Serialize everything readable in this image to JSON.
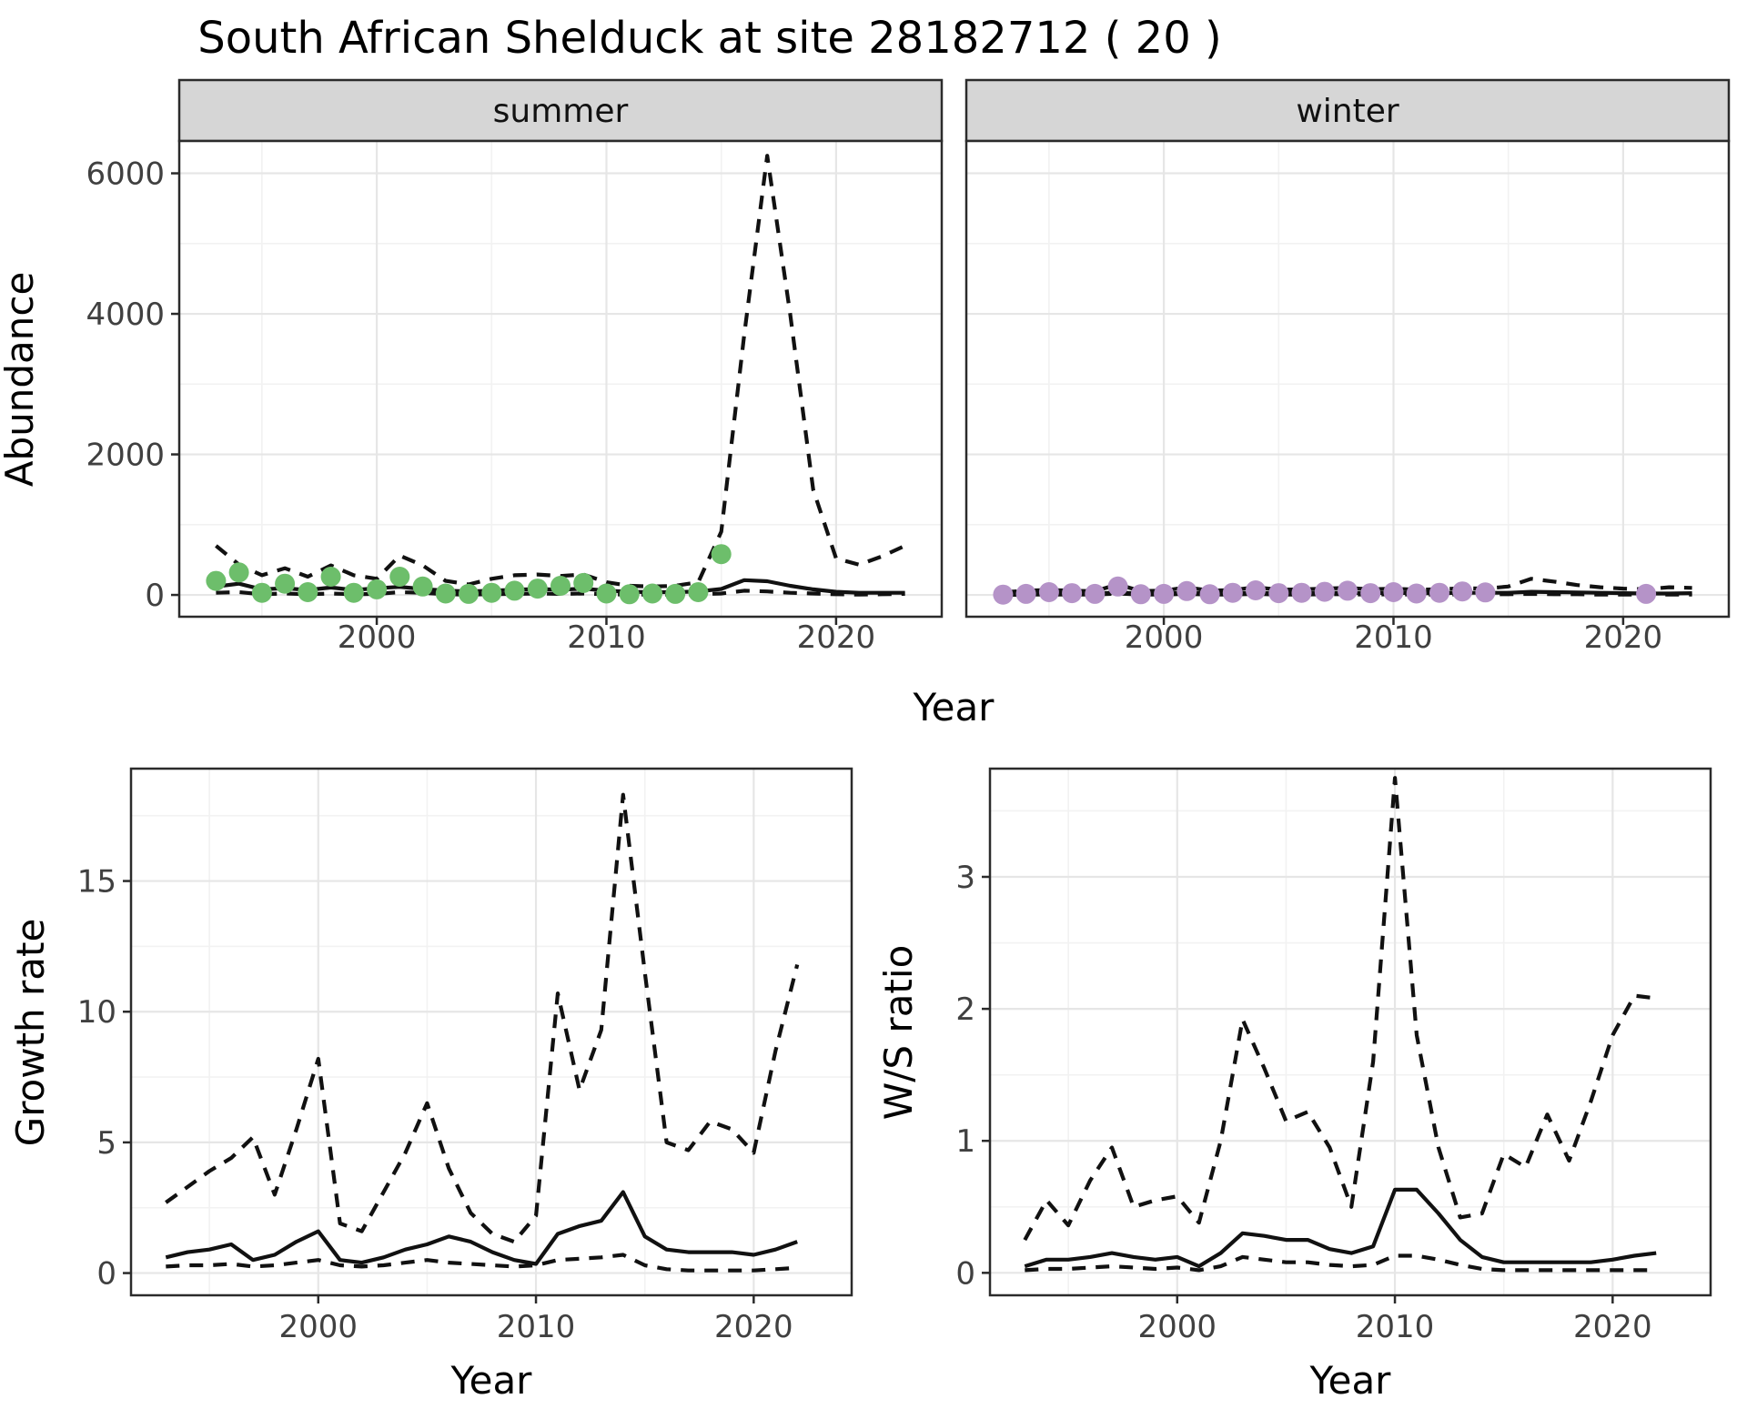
{
  "title": "South African Shelduck at site 28182712 ( 20 )",
  "axis_titles": {
    "x": "Year",
    "abundance_y": "Abundance",
    "growth_y": "Growth rate",
    "ratio_y": "W/S ratio"
  },
  "facets": {
    "summer": "summer",
    "winter": "winter"
  },
  "colors": {
    "summer_point": "#6dbe6b",
    "winter_point": "#b593c8",
    "line": "#111111",
    "strip_bg": "#d6d6d6",
    "panel_border": "#2b2b2b",
    "grid_major": "#e6e6e6",
    "grid_minor": "#f2f2f2",
    "axis_text": "#404040"
  },
  "chart_data": [
    {
      "id": "abundance-summer",
      "type": "line",
      "facet_label": "summer",
      "xlim": [
        1991.4,
        2024.6
      ],
      "ylim": [
        -310,
        6460
      ],
      "x_major": [
        2000,
        2010,
        2020
      ],
      "x_minor": [
        1995,
        2005,
        2015
      ],
      "y_major": [
        0,
        2000,
        4000,
        6000
      ],
      "y_minor": [
        1000,
        3000,
        5000
      ],
      "show_x_labels": true,
      "show_y_labels": true,
      "points": {
        "color": "#6dbe6b",
        "years": [
          1993,
          1994,
          1995,
          1996,
          1997,
          1998,
          1999,
          2000,
          2001,
          2002,
          2003,
          2004,
          2005,
          2006,
          2007,
          2008,
          2009,
          2010,
          2011,
          2012,
          2013,
          2014,
          2015
        ],
        "values": [
          200,
          320,
          30,
          160,
          40,
          260,
          30,
          80,
          260,
          120,
          20,
          15,
          30,
          60,
          90,
          130,
          170,
          20,
          10,
          20,
          15,
          40,
          580
        ]
      },
      "series": [
        {
          "name": "mean",
          "dash": false,
          "years": [
            1993,
            1994,
            1995,
            1996,
            1997,
            1998,
            1999,
            2000,
            2001,
            2002,
            2003,
            2004,
            2005,
            2006,
            2007,
            2008,
            2009,
            2010,
            2011,
            2012,
            2013,
            2014,
            2015,
            2016,
            2017,
            2018,
            2019,
            2020,
            2021,
            2022,
            2023
          ],
          "values": [
            120,
            160,
            80,
            95,
            70,
            105,
            70,
            95,
            115,
            85,
            60,
            50,
            60,
            75,
            85,
            75,
            90,
            60,
            45,
            40,
            40,
            50,
            85,
            210,
            195,
            130,
            80,
            45,
            30,
            30,
            30
          ]
        },
        {
          "name": "upper-ci",
          "dash": true,
          "years": [
            1993,
            1994,
            1995,
            1996,
            1997,
            1998,
            1999,
            2000,
            2001,
            2002,
            2003,
            2004,
            2005,
            2006,
            2007,
            2008,
            2009,
            2010,
            2011,
            2012,
            2013,
            2014,
            2015,
            2016,
            2017,
            2018,
            2019,
            2020,
            2021,
            2022,
            2023
          ],
          "values": [
            700,
            430,
            280,
            380,
            260,
            420,
            280,
            230,
            560,
            420,
            200,
            150,
            230,
            280,
            290,
            270,
            290,
            180,
            130,
            120,
            130,
            180,
            900,
            3700,
            6250,
            4000,
            1500,
            520,
            430,
            550,
            700
          ]
        },
        {
          "name": "lower-ci",
          "dash": true,
          "years": [
            1993,
            1994,
            1995,
            1996,
            1997,
            1998,
            1999,
            2000,
            2001,
            2002,
            2003,
            2004,
            2005,
            2006,
            2007,
            2008,
            2009,
            2010,
            2011,
            2012,
            2013,
            2014,
            2015,
            2016,
            2017,
            2018,
            2019,
            2020,
            2021,
            2022,
            2023
          ],
          "values": [
            30,
            40,
            10,
            20,
            10,
            20,
            10,
            15,
            40,
            30,
            10,
            5,
            10,
            15,
            20,
            15,
            20,
            10,
            5,
            5,
            5,
            10,
            20,
            60,
            50,
            30,
            20,
            10,
            5,
            10,
            15
          ]
        }
      ]
    },
    {
      "id": "abundance-winter",
      "type": "line",
      "facet_label": "winter",
      "xlim": [
        1991.4,
        2024.6
      ],
      "ylim": [
        -310,
        6460
      ],
      "x_major": [
        2000,
        2010,
        2020
      ],
      "x_minor": [
        1995,
        2005,
        2015
      ],
      "y_major": [
        0,
        2000,
        4000,
        6000
      ],
      "y_minor": [
        1000,
        3000,
        5000
      ],
      "show_x_labels": true,
      "show_y_labels": false,
      "points": {
        "color": "#b593c8",
        "years": [
          1993,
          1994,
          1995,
          1996,
          1997,
          1998,
          1999,
          2000,
          2001,
          2002,
          2003,
          2004,
          2005,
          2006,
          2007,
          2008,
          2009,
          2010,
          2011,
          2012,
          2013,
          2014,
          2021
        ],
        "values": [
          5,
          15,
          40,
          25,
          15,
          120,
          10,
          15,
          55,
          10,
          30,
          65,
          25,
          30,
          45,
          60,
          25,
          40,
          20,
          30,
          50,
          35,
          15
        ]
      },
      "series": [
        {
          "name": "mean",
          "dash": false,
          "years": [
            1993,
            1994,
            1995,
            1996,
            1997,
            1998,
            1999,
            2000,
            2001,
            2002,
            2003,
            2004,
            2005,
            2006,
            2007,
            2008,
            2009,
            2010,
            2011,
            2012,
            2013,
            2014,
            2015,
            2016,
            2017,
            2018,
            2019,
            2020,
            2021,
            2022,
            2023
          ],
          "values": [
            15,
            20,
            25,
            25,
            20,
            35,
            20,
            20,
            30,
            20,
            25,
            30,
            25,
            25,
            30,
            30,
            25,
            30,
            25,
            25,
            30,
            30,
            30,
            45,
            40,
            35,
            30,
            25,
            20,
            20,
            25
          ]
        },
        {
          "name": "upper-ci",
          "dash": true,
          "years": [
            1993,
            1994,
            1995,
            1996,
            1997,
            1998,
            1999,
            2000,
            2001,
            2002,
            2003,
            2004,
            2005,
            2006,
            2007,
            2008,
            2009,
            2010,
            2011,
            2012,
            2013,
            2014,
            2015,
            2016,
            2017,
            2018,
            2019,
            2020,
            2021,
            2022,
            2023
          ],
          "values": [
            40,
            60,
            70,
            60,
            55,
            150,
            55,
            60,
            110,
            60,
            70,
            110,
            75,
            80,
            90,
            100,
            80,
            90,
            75,
            80,
            95,
            90,
            120,
            230,
            190,
            140,
            110,
            90,
            80,
            110,
            100
          ]
        },
        {
          "name": "lower-ci",
          "dash": true,
          "years": [
            1993,
            1994,
            1995,
            1996,
            1997,
            1998,
            1999,
            2000,
            2001,
            2002,
            2003,
            2004,
            2005,
            2006,
            2007,
            2008,
            2009,
            2010,
            2011,
            2012,
            2013,
            2014,
            2015,
            2016,
            2017,
            2018,
            2019,
            2020,
            2021,
            2022,
            2023
          ],
          "values": [
            0,
            5,
            5,
            5,
            5,
            20,
            5,
            5,
            15,
            5,
            5,
            15,
            5,
            5,
            10,
            10,
            5,
            10,
            5,
            5,
            10,
            10,
            10,
            15,
            10,
            10,
            5,
            5,
            5,
            5,
            5
          ]
        }
      ]
    },
    {
      "id": "growth-rate",
      "type": "line",
      "facet_label": null,
      "xlim": [
        1991.4,
        2024.5
      ],
      "ylim": [
        -0.85,
        19.3
      ],
      "x_major": [
        2000,
        2010,
        2020
      ],
      "x_minor": [
        1995,
        2005,
        2015
      ],
      "y_major": [
        0,
        5,
        10,
        15
      ],
      "y_minor": [
        2.5,
        7.5,
        12.5,
        17.5
      ],
      "show_x_labels": true,
      "show_y_labels": true,
      "points": null,
      "series": [
        {
          "name": "mean",
          "dash": false,
          "years": [
            1993,
            1994,
            1995,
            1996,
            1997,
            1998,
            1999,
            2000,
            2001,
            2002,
            2003,
            2004,
            2005,
            2006,
            2007,
            2008,
            2009,
            2010,
            2011,
            2012,
            2013,
            2014,
            2015,
            2016,
            2017,
            2018,
            2019,
            2020,
            2021,
            2022
          ],
          "values": [
            0.6,
            0.8,
            0.9,
            1.1,
            0.5,
            0.7,
            1.2,
            1.6,
            0.5,
            0.4,
            0.6,
            0.9,
            1.1,
            1.4,
            1.2,
            0.8,
            0.5,
            0.35,
            1.5,
            1.8,
            2.0,
            3.1,
            1.4,
            0.9,
            0.8,
            0.8,
            0.8,
            0.7,
            0.9,
            1.2
          ]
        },
        {
          "name": "upper-ci",
          "dash": true,
          "years": [
            1993,
            1994,
            1995,
            1996,
            1997,
            1998,
            1999,
            2000,
            2001,
            2002,
            2003,
            2004,
            2005,
            2006,
            2007,
            2008,
            2009,
            2010,
            2011,
            2012,
            2013,
            2014,
            2015,
            2016,
            2017,
            2018,
            2019,
            2020,
            2021,
            2022
          ],
          "values": [
            2.7,
            3.3,
            3.9,
            4.4,
            5.2,
            3.0,
            5.5,
            8.2,
            1.9,
            1.6,
            3.1,
            4.6,
            6.5,
            4.0,
            2.3,
            1.5,
            1.2,
            2.2,
            10.7,
            7.0,
            9.3,
            18.3,
            11.5,
            5.0,
            4.7,
            5.8,
            5.5,
            4.6,
            8.5,
            11.8
          ]
        },
        {
          "name": "lower-ci",
          "dash": true,
          "years": [
            1993,
            1994,
            1995,
            1996,
            1997,
            1998,
            1999,
            2000,
            2001,
            2002,
            2003,
            2004,
            2005,
            2006,
            2007,
            2008,
            2009,
            2010,
            2011,
            2012,
            2013,
            2014,
            2015,
            2016,
            2017,
            2018,
            2019,
            2020,
            2021,
            2022
          ],
          "values": [
            0.25,
            0.3,
            0.3,
            0.35,
            0.25,
            0.3,
            0.4,
            0.5,
            0.3,
            0.25,
            0.3,
            0.4,
            0.5,
            0.4,
            0.35,
            0.3,
            0.25,
            0.3,
            0.5,
            0.55,
            0.6,
            0.7,
            0.3,
            0.15,
            0.1,
            0.1,
            0.1,
            0.1,
            0.15,
            0.2
          ]
        }
      ]
    },
    {
      "id": "ws-ratio",
      "type": "line",
      "facet_label": null,
      "xlim": [
        1991.4,
        2024.5
      ],
      "ylim": [
        -0.17,
        3.82
      ],
      "x_major": [
        2000,
        2010,
        2020
      ],
      "x_minor": [
        1995,
        2005,
        2015
      ],
      "y_major": [
        0,
        1,
        2,
        3
      ],
      "y_minor": [
        0.5,
        1.5,
        2.5,
        3.5
      ],
      "show_x_labels": true,
      "show_y_labels": true,
      "points": null,
      "series": [
        {
          "name": "mean",
          "dash": false,
          "years": [
            1993,
            1994,
            1995,
            1996,
            1997,
            1998,
            1999,
            2000,
            2001,
            2002,
            2003,
            2004,
            2005,
            2006,
            2007,
            2008,
            2009,
            2010,
            2011,
            2012,
            2013,
            2014,
            2015,
            2016,
            2017,
            2018,
            2019,
            2020,
            2021,
            2022
          ],
          "values": [
            0.05,
            0.1,
            0.1,
            0.12,
            0.15,
            0.12,
            0.1,
            0.12,
            0.05,
            0.15,
            0.3,
            0.28,
            0.25,
            0.25,
            0.18,
            0.15,
            0.2,
            0.63,
            0.63,
            0.45,
            0.25,
            0.12,
            0.08,
            0.08,
            0.08,
            0.08,
            0.08,
            0.1,
            0.13,
            0.15
          ]
        },
        {
          "name": "upper-ci",
          "dash": true,
          "years": [
            1993,
            1994,
            1995,
            1996,
            1997,
            1998,
            1999,
            2000,
            2001,
            2002,
            2003,
            2004,
            2005,
            2006,
            2007,
            2008,
            2009,
            2010,
            2011,
            2012,
            2013,
            2014,
            2015,
            2016,
            2017,
            2018,
            2019,
            2020,
            2021,
            2022
          ],
          "values": [
            0.25,
            0.55,
            0.36,
            0.7,
            0.95,
            0.5,
            0.55,
            0.58,
            0.38,
            1.0,
            1.92,
            1.55,
            1.15,
            1.22,
            0.95,
            0.5,
            1.6,
            3.75,
            1.8,
            0.95,
            0.42,
            0.45,
            0.9,
            0.8,
            1.2,
            0.85,
            1.3,
            1.8,
            2.1,
            2.08
          ]
        },
        {
          "name": "lower-ci",
          "dash": true,
          "years": [
            1993,
            1994,
            1995,
            1996,
            1997,
            1998,
            1999,
            2000,
            2001,
            2002,
            2003,
            2004,
            2005,
            2006,
            2007,
            2008,
            2009,
            2010,
            2011,
            2012,
            2013,
            2014,
            2015,
            2016,
            2017,
            2018,
            2019,
            2020,
            2021,
            2022
          ],
          "values": [
            0.02,
            0.03,
            0.03,
            0.04,
            0.05,
            0.04,
            0.03,
            0.04,
            0.02,
            0.05,
            0.12,
            0.1,
            0.08,
            0.08,
            0.06,
            0.05,
            0.06,
            0.13,
            0.13,
            0.1,
            0.06,
            0.03,
            0.02,
            0.02,
            0.02,
            0.02,
            0.02,
            0.02,
            0.02,
            0.02
          ]
        }
      ]
    }
  ]
}
